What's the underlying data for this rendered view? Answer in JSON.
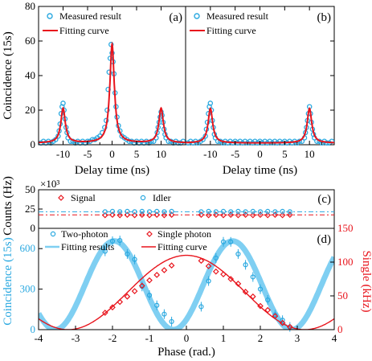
{
  "chart_data": [
    {
      "panel": "(a)",
      "type": "scatter",
      "xlabel": "Delay time (ns)",
      "ylabel": "Coincidence (15s)",
      "xlim": [
        -15,
        15
      ],
      "ylim": [
        0,
        80
      ],
      "xticks": [
        -10,
        -5,
        0,
        5,
        10
      ],
      "yticks": [
        0,
        20,
        40,
        60,
        80
      ],
      "legend": [
        "Measured result",
        "Fitting curve"
      ],
      "colors": {
        "measured": "#29a8e0",
        "fit": "#e8141c"
      },
      "fit_peaks": [
        {
          "center": -10,
          "height": 20,
          "width": 0.55
        },
        {
          "center": 0,
          "height": 57,
          "width": 0.55
        },
        {
          "center": 10,
          "height": 20,
          "width": 0.55
        }
      ],
      "baseline": 1,
      "measured": [
        [
          -14.5,
          1
        ],
        [
          -14,
          2
        ],
        [
          -13.5,
          1
        ],
        [
          -13,
          2
        ],
        [
          -12.5,
          1
        ],
        [
          -12,
          2
        ],
        [
          -11.5,
          3
        ],
        [
          -11,
          5
        ],
        [
          -10.8,
          8
        ],
        [
          -10.6,
          12
        ],
        [
          -10.4,
          18
        ],
        [
          -10.2,
          22
        ],
        [
          -10,
          24
        ],
        [
          -9.8,
          20
        ],
        [
          -9.6,
          15
        ],
        [
          -9.4,
          10
        ],
        [
          -9.2,
          7
        ],
        [
          -9,
          4
        ],
        [
          -8.5,
          2
        ],
        [
          -8,
          2
        ],
        [
          -7.5,
          1
        ],
        [
          -7,
          2
        ],
        [
          -6.5,
          1
        ],
        [
          -6,
          2
        ],
        [
          -5.5,
          1
        ],
        [
          -5,
          2
        ],
        [
          -4.5,
          2
        ],
        [
          -4,
          3
        ],
        [
          -3.5,
          3
        ],
        [
          -3,
          4
        ],
        [
          -2.5,
          5
        ],
        [
          -2,
          7
        ],
        [
          -1.5,
          10
        ],
        [
          -1.2,
          14
        ],
        [
          -1,
          20
        ],
        [
          -0.8,
          32
        ],
        [
          -0.6,
          42
        ],
        [
          -0.4,
          50
        ],
        [
          -0.2,
          58
        ],
        [
          0,
          53
        ],
        [
          0.2,
          48
        ],
        [
          0.4,
          41
        ],
        [
          0.6,
          30
        ],
        [
          0.8,
          22
        ],
        [
          1,
          16
        ],
        [
          1.3,
          11
        ],
        [
          1.6,
          8
        ],
        [
          2,
          5
        ],
        [
          2.5,
          4
        ],
        [
          3,
          3
        ],
        [
          3.5,
          2
        ],
        [
          4,
          2
        ],
        [
          4.5,
          1
        ],
        [
          5,
          2
        ],
        [
          5.5,
          1
        ],
        [
          6,
          2
        ],
        [
          6.5,
          1
        ],
        [
          7,
          2
        ],
        [
          7.5,
          1
        ],
        [
          8,
          2
        ],
        [
          8.5,
          2
        ],
        [
          9,
          4
        ],
        [
          9.2,
          7
        ],
        [
          9.4,
          10
        ],
        [
          9.6,
          13
        ],
        [
          9.8,
          16
        ],
        [
          10,
          19
        ],
        [
          10.2,
          17
        ],
        [
          10.4,
          13
        ],
        [
          10.6,
          9
        ],
        [
          10.8,
          6
        ],
        [
          11,
          4
        ],
        [
          11.5,
          2
        ],
        [
          12,
          2
        ],
        [
          12.5,
          1
        ],
        [
          13,
          2
        ],
        [
          13.5,
          1
        ],
        [
          14,
          1
        ],
        [
          14.5,
          2
        ]
      ]
    },
    {
      "panel": "(b)",
      "type": "scatter",
      "xlabel": "Delay time (ns)",
      "xlim": [
        -15,
        15
      ],
      "ylim": [
        0,
        80
      ],
      "xticks": [
        -10,
        -5,
        0,
        5,
        10
      ],
      "legend": [
        "Measured result",
        "Fitting curve"
      ],
      "fit_peaks": [
        {
          "center": -10,
          "height": 20,
          "width": 0.55
        },
        {
          "center": 10,
          "height": 20,
          "width": 0.55
        }
      ],
      "baseline": 1,
      "measured": [
        [
          -14.5,
          1
        ],
        [
          -14,
          2
        ],
        [
          -13.5,
          1
        ],
        [
          -13,
          2
        ],
        [
          -12.5,
          1
        ],
        [
          -12,
          2
        ],
        [
          -11.5,
          3
        ],
        [
          -11,
          5
        ],
        [
          -10.8,
          9
        ],
        [
          -10.6,
          13
        ],
        [
          -10.4,
          18
        ],
        [
          -10.2,
          22
        ],
        [
          -10,
          24
        ],
        [
          -9.8,
          20
        ],
        [
          -9.6,
          14
        ],
        [
          -9.4,
          10
        ],
        [
          -9.2,
          6
        ],
        [
          -9,
          4
        ],
        [
          -8.5,
          2
        ],
        [
          -8,
          2
        ],
        [
          -7.5,
          1
        ],
        [
          -7,
          2
        ],
        [
          -6.5,
          1
        ],
        [
          -6,
          2
        ],
        [
          -5.5,
          1
        ],
        [
          -5,
          2
        ],
        [
          -4.5,
          1
        ],
        [
          -4,
          2
        ],
        [
          -3.5,
          1
        ],
        [
          -3,
          2
        ],
        [
          -2.5,
          1
        ],
        [
          -2,
          2
        ],
        [
          -1.5,
          1
        ],
        [
          -1,
          2
        ],
        [
          -0.5,
          1
        ],
        [
          0,
          2
        ],
        [
          0.5,
          1
        ],
        [
          1,
          2
        ],
        [
          1.5,
          1
        ],
        [
          2,
          2
        ],
        [
          2.5,
          1
        ],
        [
          3,
          2
        ],
        [
          3.5,
          1
        ],
        [
          4,
          2
        ],
        [
          4.5,
          1
        ],
        [
          5,
          2
        ],
        [
          5.5,
          1
        ],
        [
          6,
          2
        ],
        [
          6.5,
          1
        ],
        [
          7,
          2
        ],
        [
          7.5,
          1
        ],
        [
          8,
          2
        ],
        [
          8.5,
          2
        ],
        [
          9,
          4
        ],
        [
          9.2,
          7
        ],
        [
          9.4,
          10
        ],
        [
          9.6,
          14
        ],
        [
          9.8,
          18
        ],
        [
          10,
          22
        ],
        [
          10.2,
          18
        ],
        [
          10.4,
          13
        ],
        [
          10.6,
          9
        ],
        [
          10.8,
          6
        ],
        [
          11,
          4
        ],
        [
          11.5,
          2
        ],
        [
          12,
          2
        ],
        [
          12.5,
          1
        ],
        [
          13,
          2
        ],
        [
          13.5,
          1
        ],
        [
          14,
          1
        ],
        [
          14.5,
          2
        ]
      ]
    },
    {
      "panel": "(c)",
      "type": "scatter",
      "ylabel": "Counts (Hz)",
      "multiplier": "×10³",
      "xlim": [
        -4,
        4
      ],
      "ylim": [
        0,
        50
      ],
      "yticks": [
        0,
        25,
        50
      ],
      "series": [
        {
          "name": "Signal",
          "marker": "diamond",
          "color": "#e8141c",
          "mean": 17.5,
          "x": [
            -2.2,
            -2.0,
            -1.8,
            -1.6,
            -1.4,
            -1.2,
            -1.0,
            -0.8,
            -0.6,
            -0.4,
            0.4,
            0.6,
            0.8,
            1.0,
            1.2,
            1.4,
            1.6,
            1.8,
            2.0,
            2.2,
            2.4,
            2.6,
            2.8
          ],
          "values": [
            17,
            17.5,
            17,
            17.5,
            17,
            17.5,
            17,
            17.5,
            17,
            17.5,
            17.5,
            17,
            17.5,
            17,
            17.5,
            17,
            17.5,
            17,
            17.5,
            17,
            17.5,
            17,
            17.5
          ]
        },
        {
          "name": "Idler",
          "marker": "circle",
          "color": "#29a8e0",
          "mean": 21.5,
          "x": [
            -2.2,
            -2.0,
            -1.8,
            -1.6,
            -1.4,
            -1.2,
            -1.0,
            -0.8,
            -0.6,
            -0.4,
            0.4,
            0.6,
            0.8,
            1.0,
            1.2,
            1.4,
            1.6,
            1.8,
            2.0,
            2.2,
            2.4,
            2.6,
            2.8
          ],
          "values": [
            21.5,
            22,
            21.5,
            22,
            21.5,
            22,
            21.5,
            22,
            21.5,
            22,
            21.5,
            22,
            21.5,
            22,
            21.5,
            22,
            21.5,
            22,
            21.5,
            22,
            21.5,
            22,
            21.5
          ]
        }
      ]
    },
    {
      "panel": "(d)",
      "type": "scatter",
      "xlabel": "Phase (rad.)",
      "ylabel": "Coincidence (15s)",
      "ylabel_right": "Single (kHz)",
      "xlim": [
        -4,
        4
      ],
      "ylim": [
        0,
        750
      ],
      "ylim_right": [
        0,
        150
      ],
      "xticks": [
        -4,
        -3,
        -2,
        -1,
        0,
        1,
        2,
        3,
        4
      ],
      "yticks": [
        0,
        300,
        600
      ],
      "yticks_right": [
        0,
        50,
        100,
        150
      ],
      "legend": [
        "Two-photon",
        "Single photon",
        "Fitting results",
        "Fitting curve"
      ],
      "two_photon_fit": {
        "amplitude": 328,
        "offset": 328,
        "period": 3.2,
        "phase_max": -1.95
      },
      "single_fit": {
        "amplitude": 55,
        "offset": 55,
        "period": 6.4,
        "phase_max": 0.0
      },
      "two_photon": [
        [
          -2.2,
          580
        ],
        [
          -2.0,
          655
        ],
        [
          -1.8,
          660
        ],
        [
          -1.6,
          560
        ],
        [
          -1.4,
          520
        ],
        [
          -1.2,
          320
        ],
        [
          -1.0,
          255
        ],
        [
          -0.8,
          180
        ],
        [
          -0.6,
          115
        ],
        [
          -0.4,
          60
        ],
        [
          0.4,
          170
        ],
        [
          0.6,
          360
        ],
        [
          0.8,
          530
        ],
        [
          1.0,
          650
        ],
        [
          1.2,
          650
        ],
        [
          1.4,
          560
        ],
        [
          1.6,
          480
        ],
        [
          1.8,
          390
        ],
        [
          2.0,
          300
        ],
        [
          2.2,
          220
        ],
        [
          2.4,
          110
        ],
        [
          2.6,
          70
        ],
        [
          2.8,
          20
        ]
      ],
      "single_photon": [
        [
          -2.2,
          25
        ],
        [
          -2.0,
          33
        ],
        [
          -1.8,
          41
        ],
        [
          -1.6,
          49
        ],
        [
          -1.4,
          57
        ],
        [
          -1.2,
          65
        ],
        [
          -1.0,
          73
        ],
        [
          -0.8,
          81
        ],
        [
          -0.6,
          88
        ],
        [
          -0.4,
          95
        ],
        [
          0.4,
          102
        ],
        [
          0.6,
          94
        ],
        [
          0.8,
          86
        ],
        [
          1.0,
          82
        ],
        [
          1.2,
          75
        ],
        [
          1.4,
          68
        ],
        [
          1.6,
          56
        ],
        [
          1.8,
          49
        ],
        [
          2.0,
          35
        ],
        [
          2.2,
          29
        ],
        [
          2.4,
          20
        ],
        [
          2.6,
          10
        ],
        [
          2.8,
          4
        ]
      ]
    }
  ]
}
